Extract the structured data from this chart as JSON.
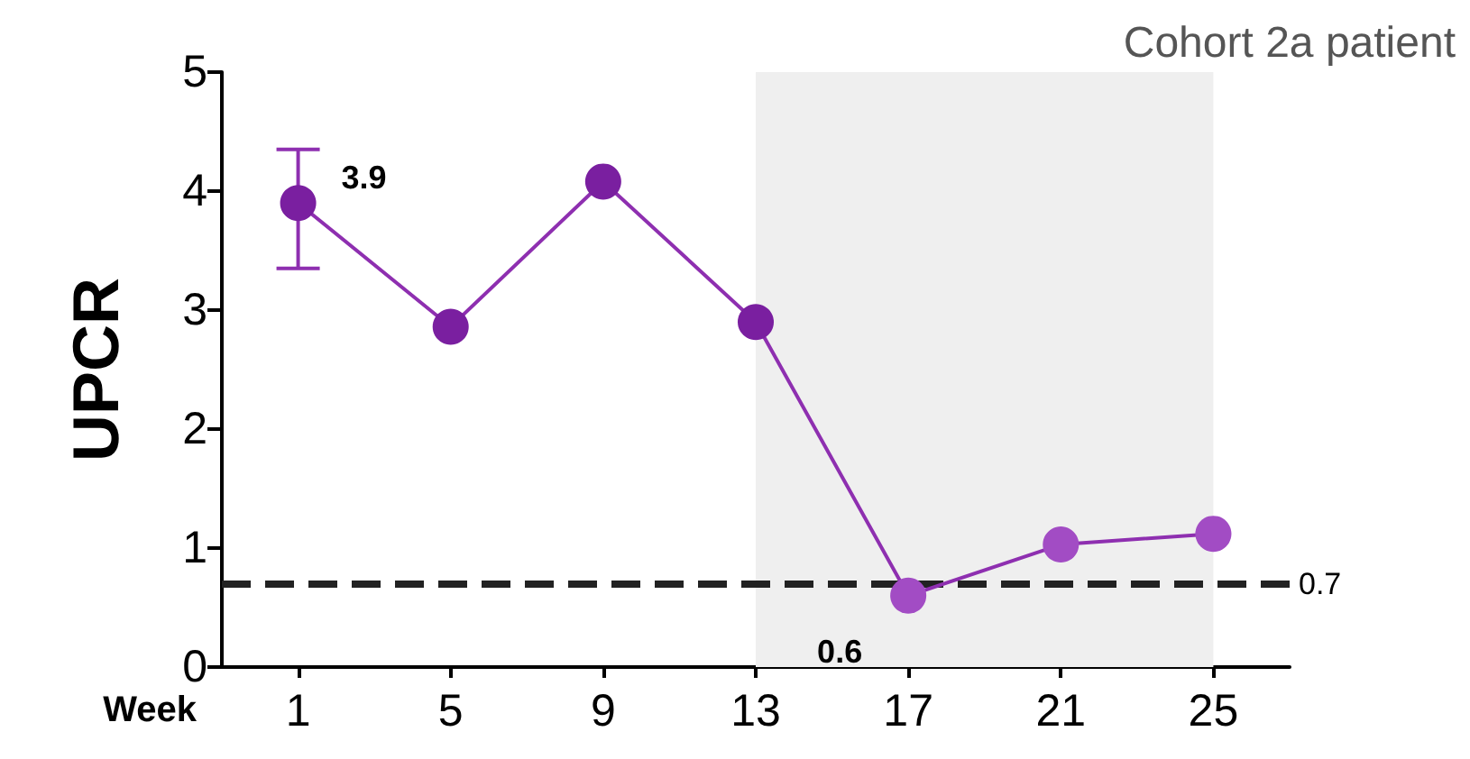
{
  "chart_data": {
    "type": "line",
    "xlabel": "Week",
    "ylabel": "UPCR",
    "annotations": [
      "Cohort 2a patient"
    ],
    "categories": [
      "1",
      "5",
      "9",
      "13",
      "17",
      "21",
      "25"
    ],
    "series": [
      {
        "color": "#8e2fb0",
        "colors": [
          "#7a1fa0",
          "#7a1fa0",
          "#7a1fa0",
          "#7a1fa0",
          "#a24cc4",
          "#a24cc4",
          "#a24cc4"
        ],
        "values": [
          3.9,
          2.86,
          4.08,
          2.9,
          0.6,
          1.03,
          1.12
        ],
        "errors": [
          [
            3.35,
            4.35
          ],
          null,
          null,
          null,
          null,
          null,
          null
        ],
        "value_labels": [
          "3.9",
          null,
          null,
          null,
          "0.6",
          null,
          null
        ]
      }
    ],
    "ylim": [
      0,
      5
    ],
    "yticks": [
      0,
      1,
      2,
      3,
      4,
      5
    ],
    "grid": false,
    "marker": "circle",
    "line_style": "solid",
    "ref_lines": [
      {
        "axis": "y",
        "value": 0.7,
        "label": "0.7",
        "color": "#222222",
        "line_style": "dashed"
      }
    ],
    "bands": [
      {
        "axis": "x",
        "from": "13",
        "to": "25",
        "color": "#efefef"
      }
    ]
  }
}
